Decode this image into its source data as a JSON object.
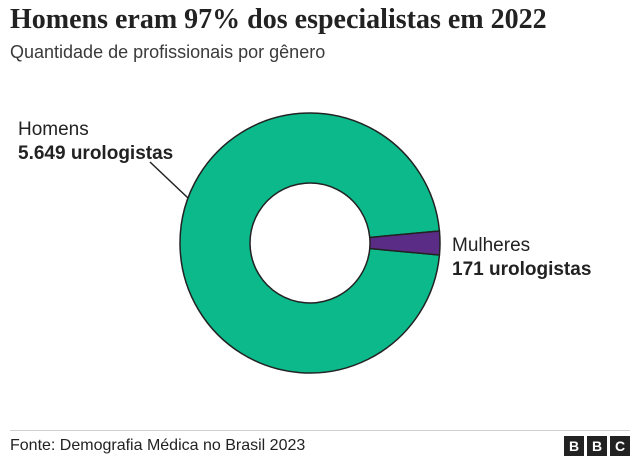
{
  "header": {
    "title": "Homens eram 97% dos especialistas em 2022",
    "subtitle": "Quantidade de profissionais por gênero"
  },
  "chart_data": {
    "type": "pie",
    "categories": [
      "Homens",
      "Mulheres"
    ],
    "values": [
      5649,
      171
    ],
    "value_labels": [
      "5.649 urologistas",
      "171 urologistas"
    ],
    "colors": [
      "#0bb98b",
      "#5a2c86"
    ],
    "style": "donut"
  },
  "footer": {
    "source": "Fonte: Demografia Médica no Brasil 2023",
    "logo": [
      "B",
      "B",
      "C"
    ]
  }
}
